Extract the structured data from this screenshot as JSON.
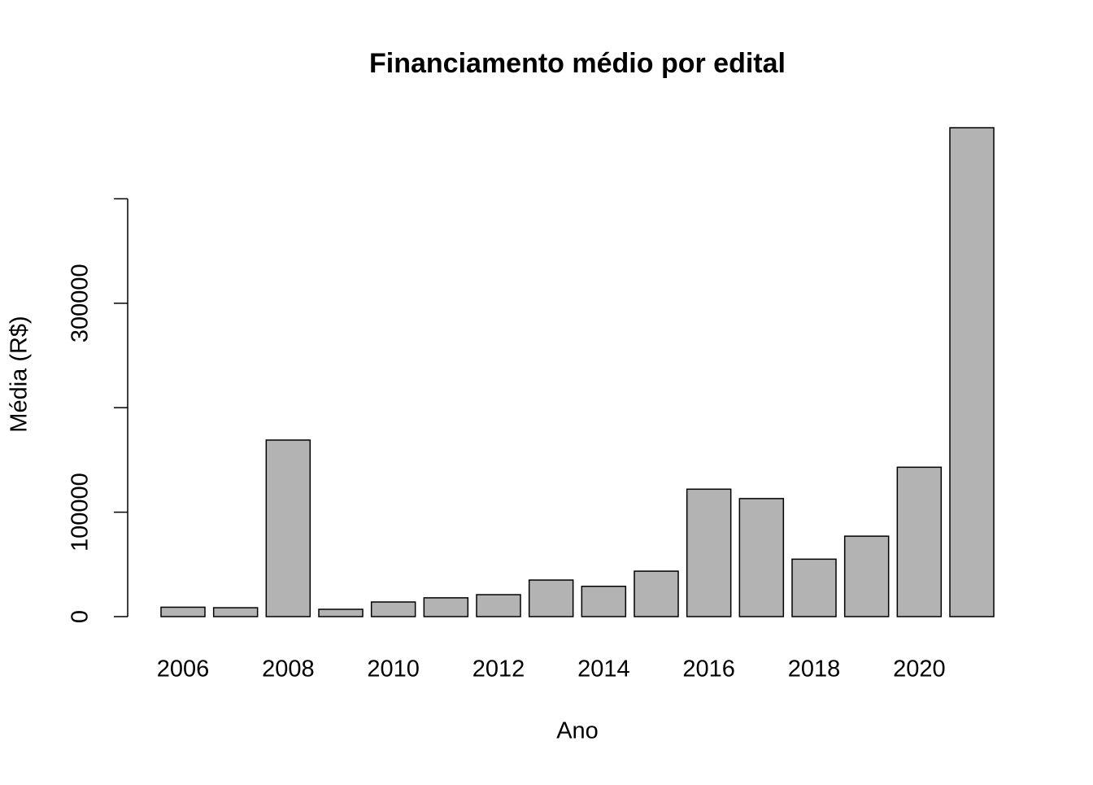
{
  "chart_data": {
    "type": "bar",
    "title": "Financiamento médio por edital",
    "x_label": "Ano",
    "y_label": "Média (R$)",
    "categories": [
      "2006",
      null,
      "2008",
      null,
      "2010",
      null,
      "2012",
      null,
      "2014",
      null,
      "2016",
      null,
      "2018",
      null,
      "2020",
      null
    ],
    "values": [
      9000,
      8500,
      169000,
      7000,
      14000,
      18000,
      21000,
      35000,
      29000,
      43500,
      122000,
      113000,
      55000,
      77000,
      143000,
      468000
    ],
    "color": "#b3b3b3",
    "ylim": [
      0,
      468000
    ],
    "yticks": [
      0,
      100000,
      {
        "value": 200000,
        "label": null
      },
      300000,
      {
        "value": 400000,
        "label": null
      }
    ]
  }
}
